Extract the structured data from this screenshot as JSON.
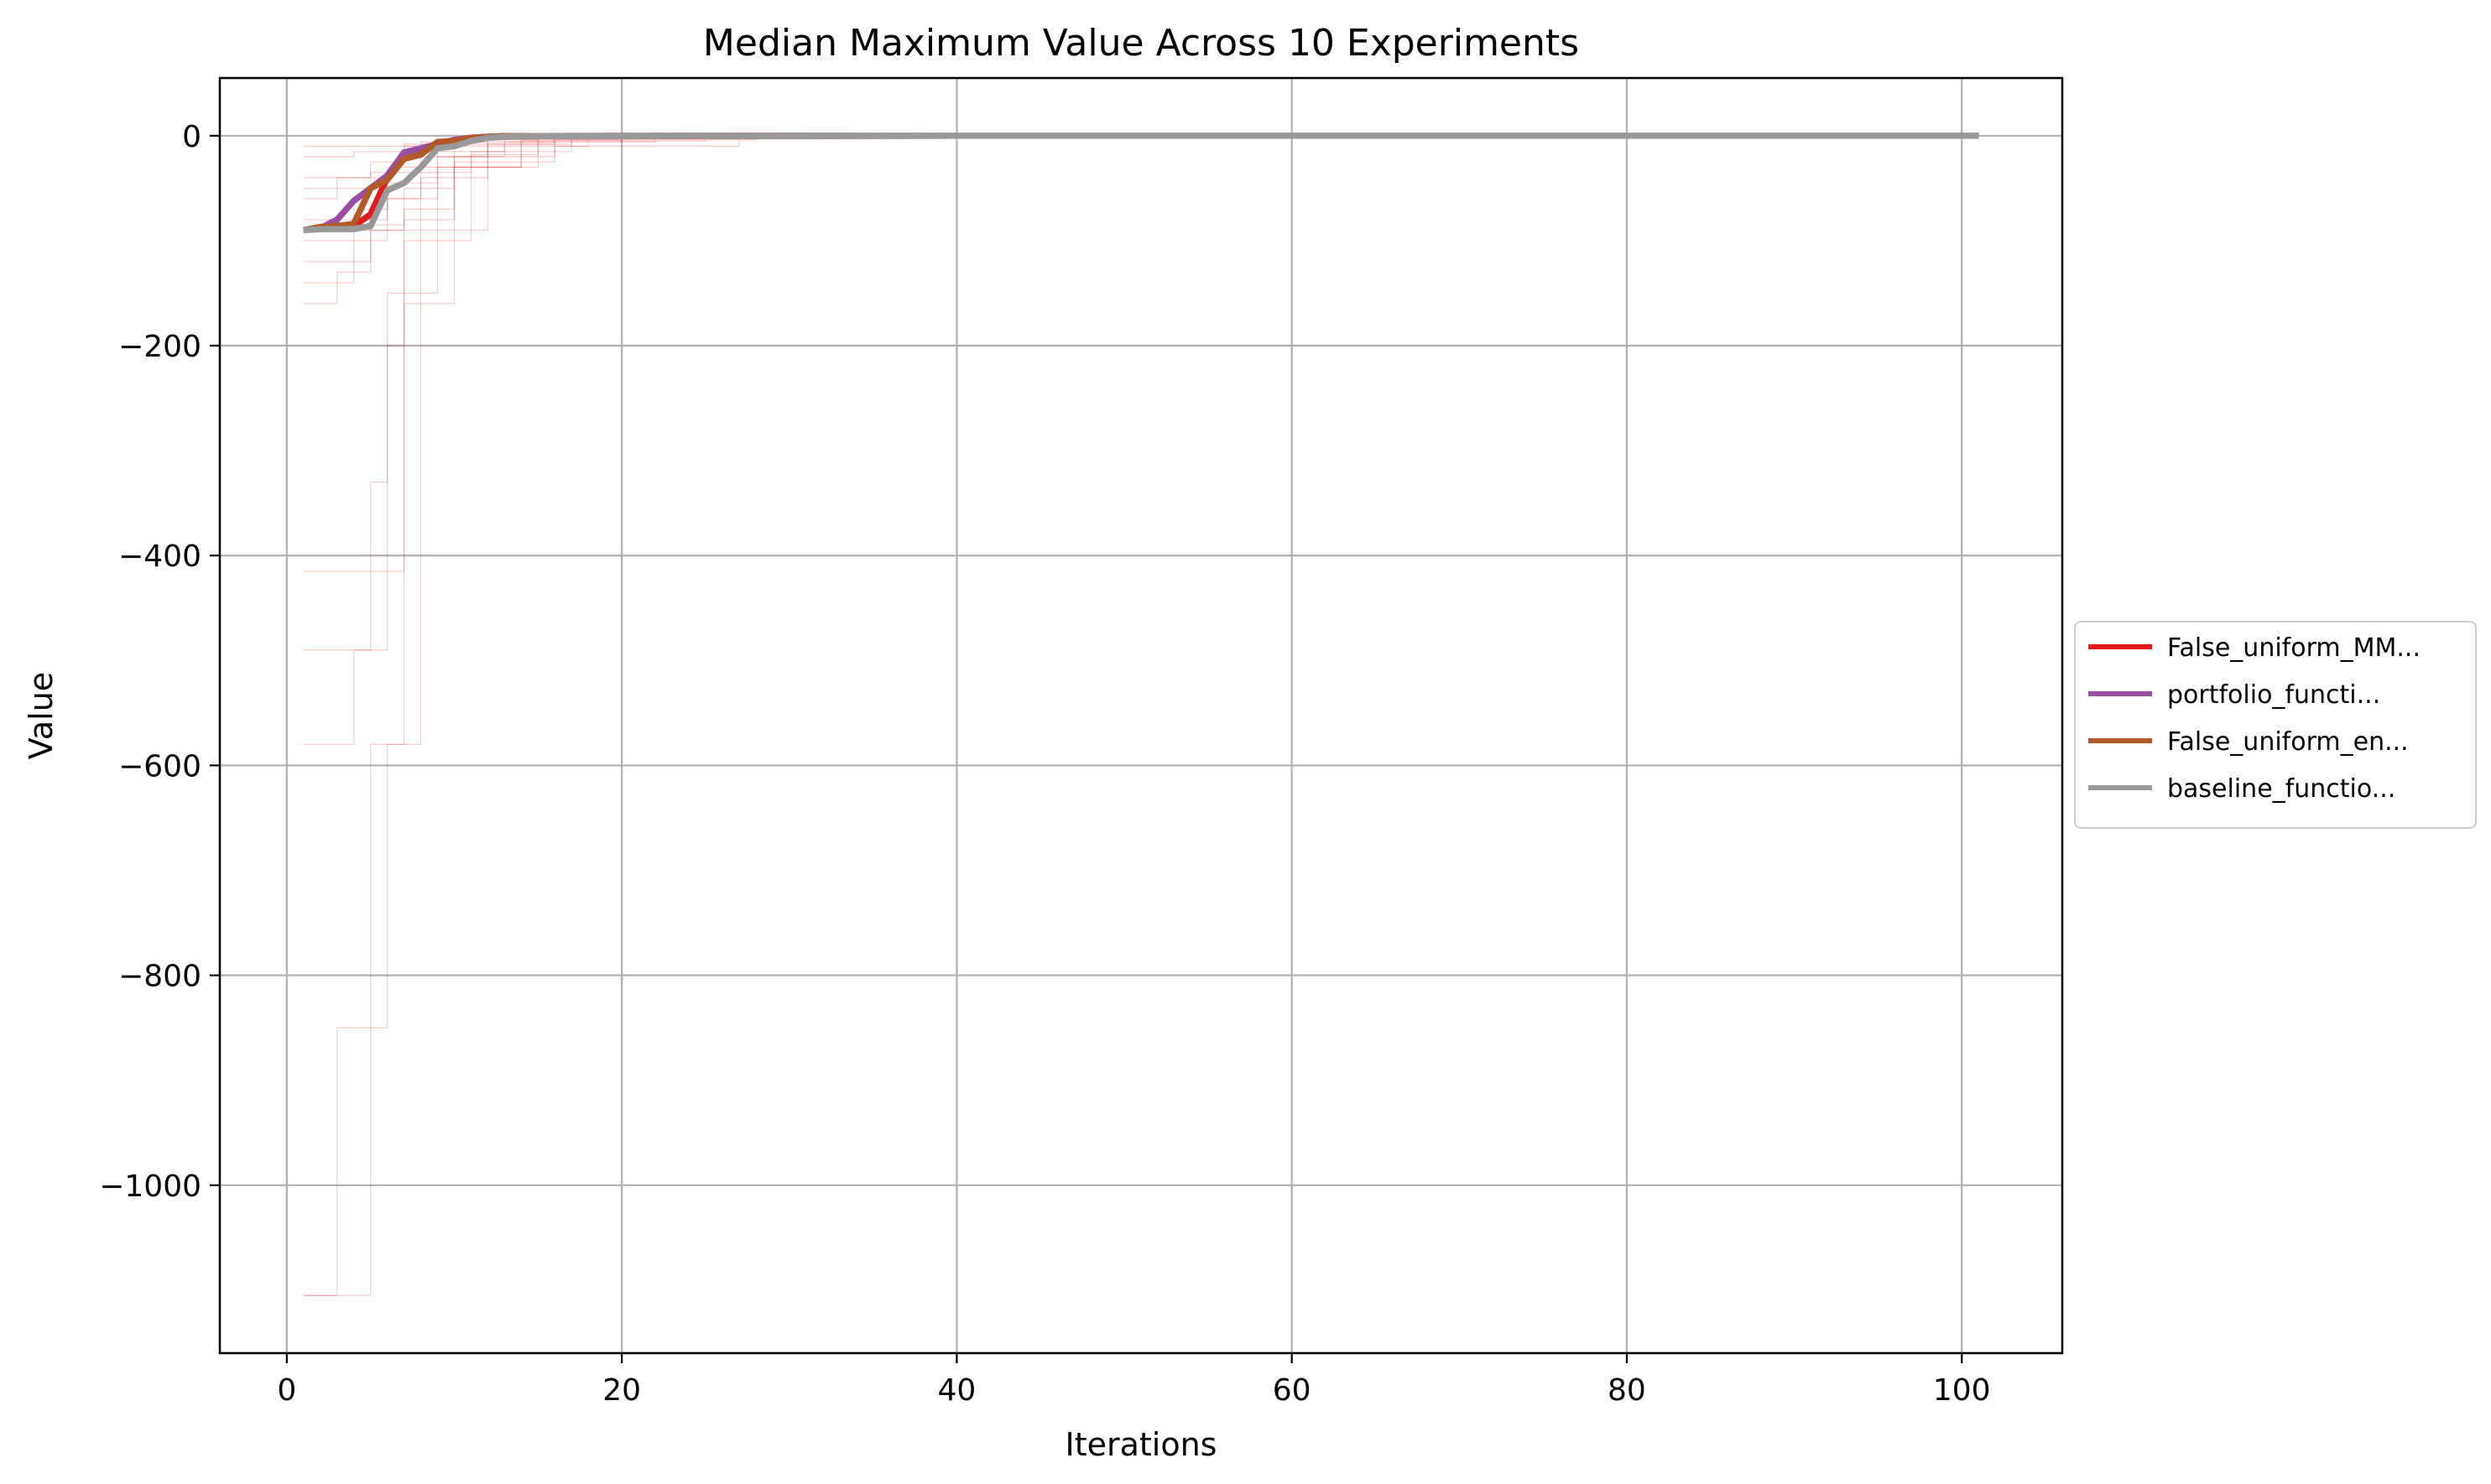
{
  "chart_data": {
    "type": "line",
    "title": "Median Maximum Value Across 10 Experiments",
    "xlabel": "Iterations",
    "ylabel": "Value",
    "xlim": [
      -4,
      106
    ],
    "ylim": [
      -1160,
      55
    ],
    "xticks": [
      0,
      20,
      40,
      60,
      80,
      100
    ],
    "yticks": [
      0,
      -200,
      -400,
      -600,
      -800,
      -1000
    ],
    "xtick_labels": [
      "0",
      "20",
      "40",
      "60",
      "80",
      "100"
    ],
    "ytick_labels": [
      "0",
      "−200",
      "−400",
      "−600",
      "−800",
      "−1000"
    ],
    "grid": true,
    "legend_position": "center-right, outside plot",
    "series": [
      {
        "name": "False_uniform_MM...",
        "color": "#e41a1c",
        "x": [
          1,
          2,
          3,
          4,
          5,
          6,
          7,
          8,
          9,
          10,
          11,
          12,
          13,
          15,
          20,
          40,
          101
        ],
        "y": [
          -90,
          -88,
          -87,
          -86,
          -75,
          -40,
          -22,
          -14,
          -8,
          -4,
          -2,
          -1,
          -0.5,
          -0.3,
          -0.2,
          0,
          0
        ]
      },
      {
        "name": "portfolio_functi...",
        "color": "#984ea3",
        "x": [
          1,
          2,
          3,
          4,
          5,
          6,
          7,
          8,
          9,
          10,
          11,
          12,
          13,
          15,
          20,
          40,
          101
        ],
        "y": [
          -90,
          -88,
          -80,
          -62,
          -50,
          -38,
          -16,
          -12,
          -8,
          -4,
          -2,
          -1,
          -0.5,
          -0.3,
          -0.2,
          0,
          0
        ]
      },
      {
        "name": "False_uniform_en...",
        "color": "#b15928",
        "x": [
          1,
          2,
          3,
          4,
          5,
          6,
          7,
          8,
          9,
          10,
          11,
          12,
          13,
          15,
          20,
          40,
          101
        ],
        "y": [
          -90,
          -87,
          -86,
          -84,
          -50,
          -42,
          -22,
          -18,
          -6,
          -5,
          -2,
          -1,
          -0.5,
          -0.3,
          -0.2,
          0,
          0
        ]
      },
      {
        "name": "baseline_functio...",
        "color": "#999999",
        "x": [
          1,
          2,
          3,
          4,
          5,
          6,
          7,
          8,
          9,
          10,
          11,
          12,
          13,
          15,
          20,
          40,
          101
        ],
        "y": [
          -90,
          -89,
          -89,
          -89,
          -86,
          -52,
          -45,
          -30,
          -12,
          -10,
          -5,
          -2,
          -1,
          -0.5,
          -0.3,
          0,
          0
        ]
      }
    ],
    "background_runs": {
      "color": "#e41a1c",
      "runs": [
        {
          "x": [
            1,
            2,
            3,
            5,
            7,
            10,
            14,
            20
          ],
          "y": [
            -1105,
            -1105,
            -850,
            -580,
            -160,
            -20,
            -4,
            0
          ]
        },
        {
          "x": [
            1,
            3,
            5,
            6,
            8,
            12,
            18
          ],
          "y": [
            -1105,
            -1105,
            -850,
            -580,
            -90,
            -10,
            0
          ]
        },
        {
          "x": [
            1,
            2,
            4,
            5,
            6,
            9,
            15
          ],
          "y": [
            -580,
            -580,
            -490,
            -330,
            -150,
            -30,
            0
          ]
        },
        {
          "x": [
            1,
            3,
            5,
            6,
            7,
            11,
            17
          ],
          "y": [
            -490,
            -490,
            -490,
            -415,
            -100,
            -15,
            0
          ]
        },
        {
          "x": [
            1,
            2,
            4,
            6,
            7,
            10,
            16
          ],
          "y": [
            -415,
            -415,
            -415,
            -200,
            -80,
            -8,
            0
          ]
        },
        {
          "x": [
            1,
            2,
            3,
            5,
            8,
            12,
            22
          ],
          "y": [
            -160,
            -160,
            -130,
            -90,
            -40,
            -6,
            0
          ]
        },
        {
          "x": [
            1,
            3,
            4,
            6,
            9,
            14,
            25
          ],
          "y": [
            -140,
            -140,
            -100,
            -60,
            -30,
            -5,
            0
          ]
        },
        {
          "x": [
            1,
            2,
            5,
            7,
            10,
            16,
            28
          ],
          "y": [
            -120,
            -120,
            -85,
            -50,
            -25,
            -4,
            0
          ]
        },
        {
          "x": [
            1,
            2,
            4,
            6,
            9,
            13,
            20
          ],
          "y": [
            -100,
            -100,
            -70,
            -45,
            -20,
            -3,
            0
          ]
        },
        {
          "x": [
            1,
            3,
            6,
            8,
            11,
            15,
            30
          ],
          "y": [
            -80,
            -80,
            -60,
            -35,
            -18,
            -2,
            0
          ]
        },
        {
          "x": [
            1,
            2,
            3,
            5,
            7,
            12,
            18
          ],
          "y": [
            -60,
            -60,
            -40,
            -25,
            -10,
            -2,
            0
          ]
        },
        {
          "x": [
            1,
            4,
            5,
            8,
            12,
            17,
            35
          ],
          "y": [
            -50,
            -50,
            -35,
            -20,
            -8,
            -1,
            0
          ]
        },
        {
          "x": [
            1,
            2,
            6,
            9,
            13,
            16,
            24
          ],
          "y": [
            -40,
            -40,
            -30,
            -15,
            -6,
            -1,
            0
          ]
        },
        {
          "x": [
            1,
            3,
            7,
            10,
            14,
            16,
            27
          ],
          "y": [
            -90,
            -90,
            -70,
            -30,
            -20,
            -10,
            0
          ]
        },
        {
          "x": [
            1,
            2,
            4,
            7,
            11,
            15,
            19
          ],
          "y": [
            -20,
            -20,
            -15,
            -8,
            -4,
            -1,
            0
          ]
        },
        {
          "x": [
            1,
            5,
            8,
            12,
            16,
            20,
            36
          ],
          "y": [
            -10,
            -10,
            -6,
            -3,
            -2,
            -1,
            0
          ]
        }
      ]
    }
  }
}
